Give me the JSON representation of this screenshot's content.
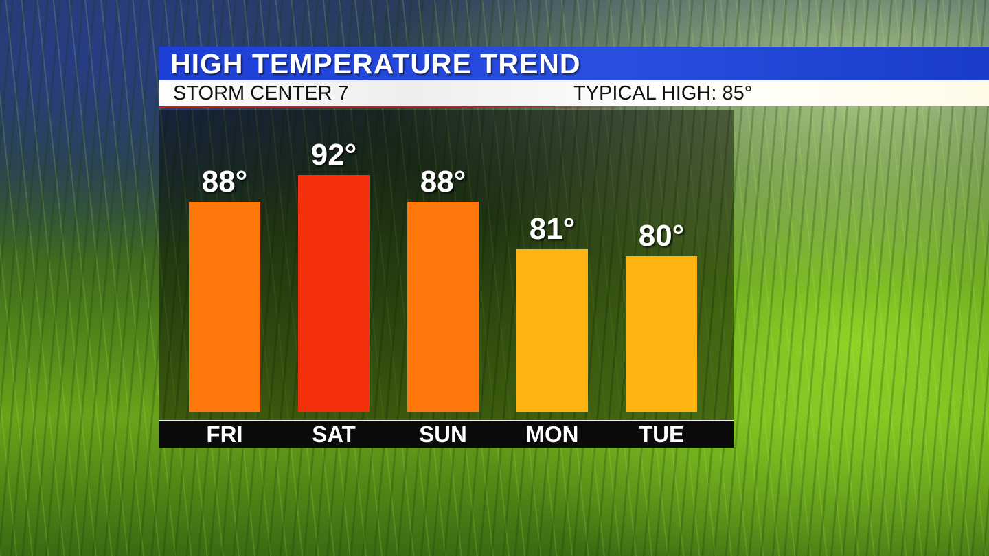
{
  "header": {
    "title": "HIGH TEMPERATURE TREND",
    "station": "STORM CENTER 7",
    "typical_high": "TYPICAL HIGH: 85°"
  },
  "chart_data": {
    "type": "bar",
    "title": "HIGH TEMPERATURE TREND",
    "categories": [
      "FRI",
      "SAT",
      "SUN",
      "MON",
      "TUE"
    ],
    "values": [
      88,
      92,
      88,
      81,
      80
    ],
    "labels": [
      "88°",
      "92°",
      "88°",
      "81°",
      "80°"
    ],
    "colors": [
      "#ff780c",
      "#f5300c",
      "#ff780c",
      "#ffb412",
      "#ffb412"
    ],
    "ylim": [
      57,
      92
    ],
    "grid": false,
    "legend": "none",
    "xlabel": "",
    "ylabel": ""
  }
}
